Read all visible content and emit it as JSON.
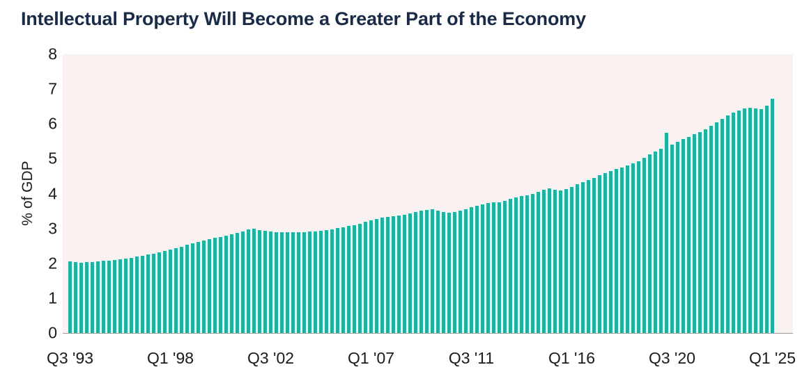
{
  "title": "Intellectual Property Will Become a Greater Part of the Economy",
  "colors": {
    "title_text": "#192b47",
    "bar": "#1eb2a3",
    "plot_background": "#faf2f0",
    "axis_text": "#1a1a1a",
    "baseline": "#9b9b9b"
  },
  "chart_data": {
    "type": "bar",
    "title": "Intellectual Property Will Become a Greater Part of the Economy",
    "xlabel": "",
    "ylabel": "% of GDP",
    "ylim": [
      0,
      8
    ],
    "y_ticks": [
      0,
      1,
      2,
      3,
      4,
      5,
      6,
      7,
      8
    ],
    "grid": false,
    "legend": false,
    "x_tick_labels": [
      "Q3 '93",
      "Q1 '98",
      "Q3 '02",
      "Q1 '07",
      "Q3 '11",
      "Q1 '16",
      "Q3 '20",
      "Q1 '25"
    ],
    "x_tick_every": 18,
    "values": [
      2.05,
      2.03,
      2.02,
      2.03,
      2.04,
      2.05,
      2.07,
      2.08,
      2.09,
      2.11,
      2.13,
      2.16,
      2.19,
      2.22,
      2.25,
      2.28,
      2.32,
      2.36,
      2.4,
      2.44,
      2.48,
      2.53,
      2.57,
      2.61,
      2.65,
      2.69,
      2.73,
      2.76,
      2.8,
      2.83,
      2.87,
      2.92,
      2.97,
      2.99,
      2.96,
      2.93,
      2.91,
      2.9,
      2.89,
      2.9,
      2.9,
      2.89,
      2.9,
      2.91,
      2.92,
      2.93,
      2.95,
      2.98,
      3.01,
      3.04,
      3.07,
      3.1,
      3.14,
      3.19,
      3.24,
      3.28,
      3.31,
      3.33,
      3.35,
      3.37,
      3.4,
      3.44,
      3.48,
      3.51,
      3.54,
      3.56,
      3.52,
      3.48,
      3.46,
      3.48,
      3.52,
      3.56,
      3.61,
      3.66,
      3.7,
      3.73,
      3.76,
      3.75,
      3.8,
      3.86,
      3.9,
      3.93,
      3.96,
      4.0,
      4.06,
      4.12,
      4.16,
      4.11,
      4.1,
      4.14,
      4.2,
      4.27,
      4.33,
      4.39,
      4.45,
      4.52,
      4.58,
      4.65,
      4.7,
      4.75,
      4.8,
      4.86,
      4.93,
      5.02,
      5.12,
      5.2,
      5.28,
      5.75,
      5.4,
      5.48,
      5.56,
      5.63,
      5.7,
      5.76,
      5.85,
      5.95,
      6.05,
      6.15,
      6.24,
      6.32,
      6.38,
      6.44,
      6.47,
      6.45,
      6.43,
      6.53,
      6.72
    ]
  }
}
